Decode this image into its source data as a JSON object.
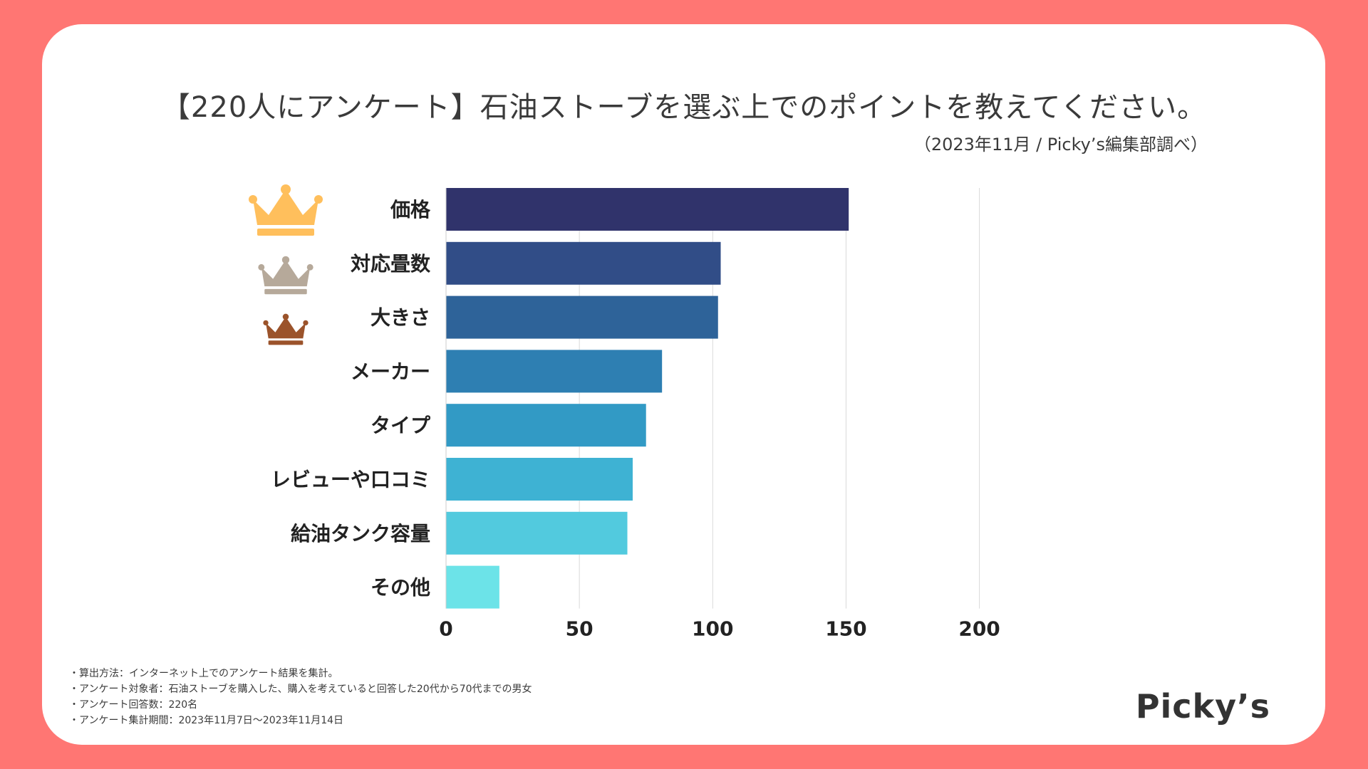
{
  "title": "【220人にアンケート】石油ストーブを選ぶ上でのポイントを教えてください。",
  "subtitle": "（2023年11月 / Picky’s編集部調べ）",
  "chart_data": {
    "type": "bar",
    "orientation": "horizontal",
    "categories": [
      "価格",
      "対応畳数",
      "大きさ",
      "メーカー",
      "タイプ",
      "レビューや口コミ",
      "給油タンク容量",
      "その他"
    ],
    "values": [
      151,
      103,
      102,
      81,
      75,
      70,
      68,
      20
    ],
    "colors": [
      "#30336b",
      "#314d87",
      "#2e6399",
      "#2e7fb2",
      "#329ac5",
      "#3eb2d3",
      "#52cade",
      "#6ce3e8"
    ],
    "xlim": [
      0,
      220
    ],
    "xticks": [
      0,
      50,
      100,
      150,
      200
    ],
    "grid": true,
    "xlabel": "",
    "ylabel": ""
  },
  "crowns": [
    {
      "rank": 1,
      "color": "#ffbf5c"
    },
    {
      "rank": 2,
      "color": "#b6a99a"
    },
    {
      "rank": 3,
      "color": "#9b532b"
    }
  ],
  "notes": [
    "・算出方法：インターネット上でのアンケート結果を集計。",
    "・アンケート対象者：石油ストーブを購入した、購入を考えていると回答した20代から70代までの男女",
    "・アンケート回答数：220名",
    "・アンケート集計期間：2023年11月7日〜2023年11月14日"
  ],
  "logo": "Picky’s"
}
